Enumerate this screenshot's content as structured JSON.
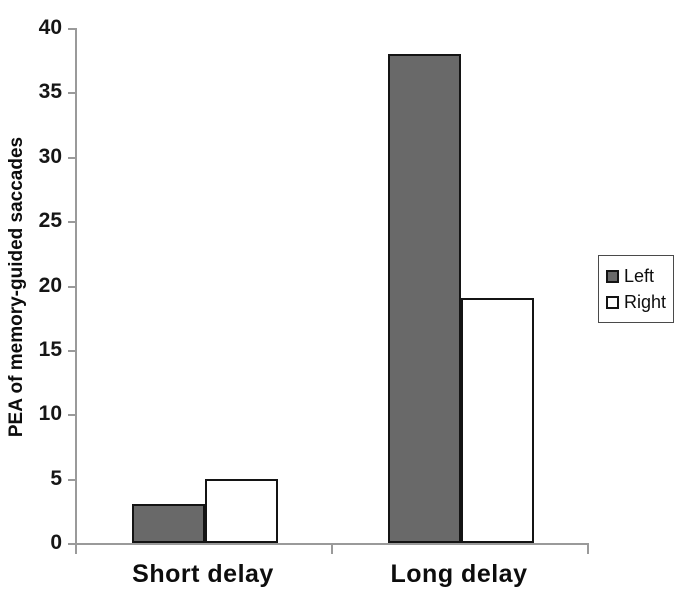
{
  "chart_data": {
    "type": "bar",
    "title": "",
    "xlabel": "",
    "ylabel": "PEA of memory-guided saccades",
    "categories": [
      "Short delay",
      "Long delay"
    ],
    "series": [
      {
        "name": "Left",
        "values": [
          3,
          38
        ],
        "fill": "#696969"
      },
      {
        "name": "Right",
        "values": [
          5,
          19
        ],
        "fill": "#ffffff"
      }
    ],
    "ylim": [
      0,
      40
    ],
    "yticks": [
      0,
      5,
      10,
      15,
      20,
      25,
      30,
      35,
      40
    ],
    "grid": false,
    "legend_position": "right",
    "colors": {
      "bar_border": "#141414",
      "axis": "#9a9a9a",
      "background": "#ffffff"
    }
  }
}
